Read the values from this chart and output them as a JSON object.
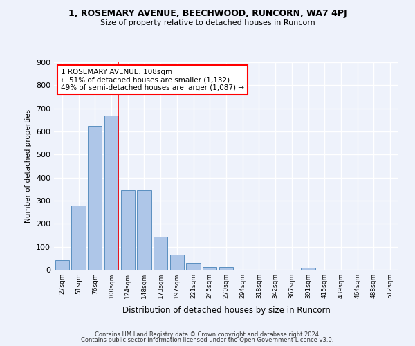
{
  "title1": "1, ROSEMARY AVENUE, BEECHWOOD, RUNCORN, WA7 4PJ",
  "title2": "Size of property relative to detached houses in Runcorn",
  "xlabel": "Distribution of detached houses by size in Runcorn",
  "ylabel": "Number of detached properties",
  "bar_labels": [
    "27sqm",
    "51sqm",
    "76sqm",
    "100sqm",
    "124sqm",
    "148sqm",
    "173sqm",
    "197sqm",
    "221sqm",
    "245sqm",
    "270sqm",
    "294sqm",
    "318sqm",
    "342sqm",
    "367sqm",
    "391sqm",
    "415sqm",
    "439sqm",
    "464sqm",
    "488sqm",
    "512sqm"
  ],
  "bar_values": [
    42,
    280,
    625,
    670,
    345,
    345,
    143,
    65,
    30,
    12,
    12,
    0,
    0,
    0,
    0,
    10,
    0,
    0,
    0,
    0,
    0
  ],
  "bar_color": "#aec6e8",
  "bar_edge_color": "#5a8fc0",
  "highlight_index": 3,
  "annotation_line1": "1 ROSEMARY AVENUE: 108sqm",
  "annotation_line2": "← 51% of detached houses are smaller (1,132)",
  "annotation_line3": "49% of semi-detached houses are larger (1,087) →",
  "ylim": [
    0,
    900
  ],
  "yticks": [
    0,
    100,
    200,
    300,
    400,
    500,
    600,
    700,
    800,
    900
  ],
  "footer1": "Contains HM Land Registry data © Crown copyright and database right 2024.",
  "footer2": "Contains public sector information licensed under the Open Government Licence v3.0.",
  "background_color": "#eef2fb",
  "grid_color": "#ffffff"
}
